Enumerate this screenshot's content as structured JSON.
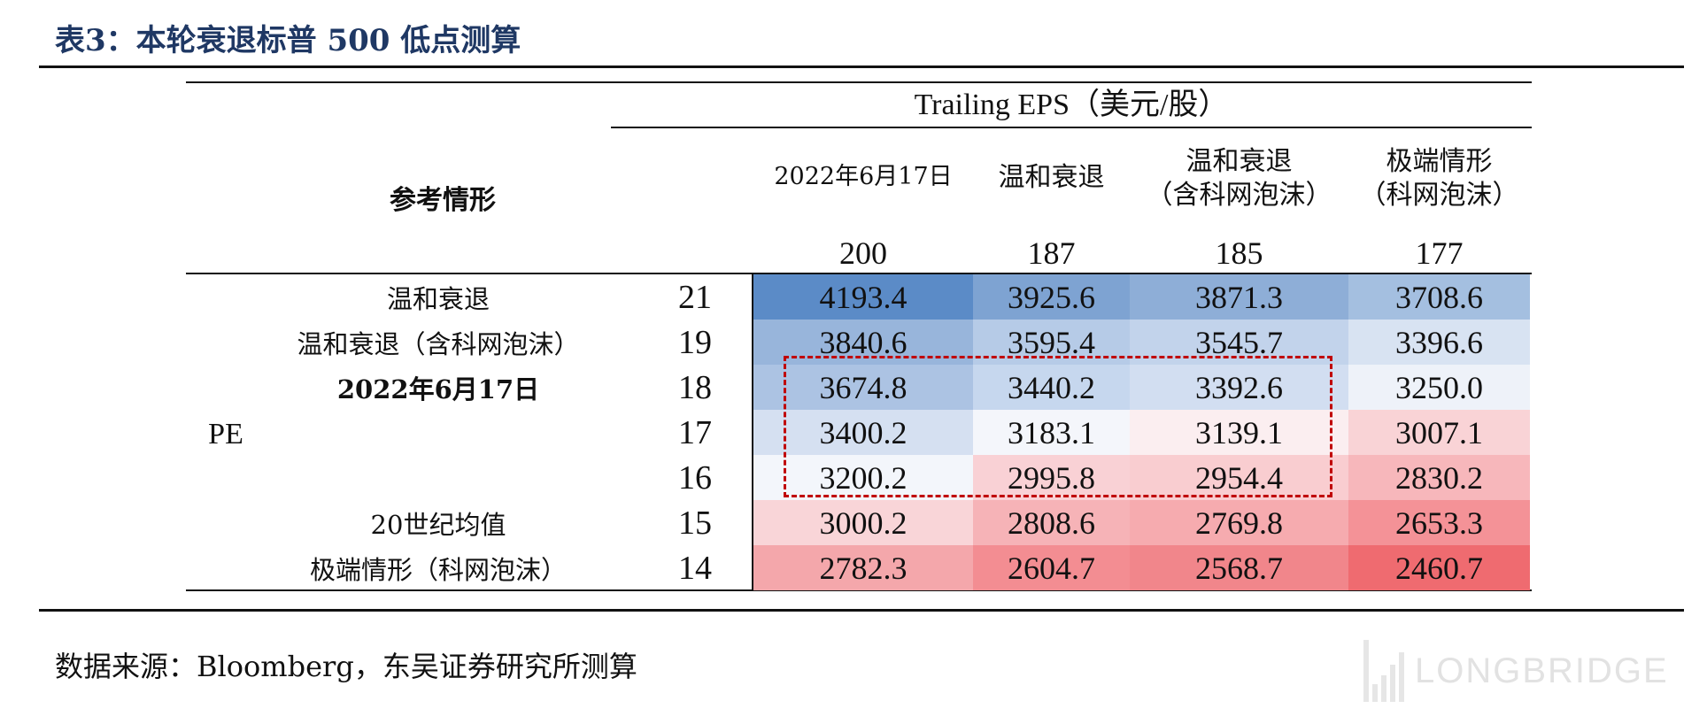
{
  "title": "表3：本轮衰退标普 500 低点测算",
  "header": {
    "group_label": "Trailing EPS（美元/股）",
    "ref_label": "参考情形",
    "columns": [
      {
        "line1": "2022年6月17日",
        "line2": "",
        "eps": "200"
      },
      {
        "line1": "温和衰退",
        "line2": "",
        "eps": "187"
      },
      {
        "line1": "温和衰退",
        "line2": "（含科网泡沫）",
        "eps": "185"
      },
      {
        "line1": "极端情形",
        "line2": "（科网泡沫）",
        "eps": "177"
      }
    ]
  },
  "pe_label": "PE",
  "rows": [
    {
      "label": "温和衰退",
      "pe": "21",
      "values": [
        "4193.4",
        "3925.6",
        "3871.3",
        "3708.6"
      ]
    },
    {
      "label": "温和衰退（含科网泡沫）",
      "pe": "19",
      "values": [
        "3840.6",
        "3595.4",
        "3545.7",
        "3396.6"
      ]
    },
    {
      "label": "2022年6月17日",
      "pe": "18",
      "values": [
        "3674.8",
        "3440.2",
        "3392.6",
        "3250.0"
      ]
    },
    {
      "label": "",
      "pe": "17",
      "values": [
        "3400.2",
        "3183.1",
        "3139.1",
        "3007.1"
      ]
    },
    {
      "label": "",
      "pe": "16",
      "values": [
        "3200.2",
        "2995.8",
        "2954.4",
        "2830.2"
      ]
    },
    {
      "label": "20世纪均值",
      "pe": "15",
      "values": [
        "3000.2",
        "2808.6",
        "2769.8",
        "2653.3"
      ]
    },
    {
      "label": "极端情形（科网泡沫）",
      "pe": "14",
      "values": [
        "2782.3",
        "2604.7",
        "2568.7",
        "2460.7"
      ]
    }
  ],
  "colors": {
    "title": "#1f3864",
    "highlight_border": "#c00000",
    "heat_cells": [
      [
        "#5b8bc7",
        "#7ea3d2",
        "#8eaed7",
        "#a4bfe0"
      ],
      [
        "#98b5db",
        "#b6cbe7",
        "#c2d3eb",
        "#d8e3f2"
      ],
      [
        "#acc3e3",
        "#c6d7ee",
        "#d2def1",
        "#eef2f9"
      ],
      [
        "#d5e0f1",
        "#f4f6fb",
        "#fbeef0",
        "#f9d3d6"
      ],
      [
        "#f3f6fb",
        "#f9d1d5",
        "#f9cdd0",
        "#f7b7bb"
      ],
      [
        "#f9d5d8",
        "#f6b3b7",
        "#f6abaf",
        "#f49297"
      ],
      [
        "#f4a7ab",
        "#f38d92",
        "#f1868b",
        "#ef6b70"
      ]
    ]
  },
  "source": "数据来源：Bloomberg，东吴证券研究所测算",
  "watermark": "LONGBRIDGE"
}
